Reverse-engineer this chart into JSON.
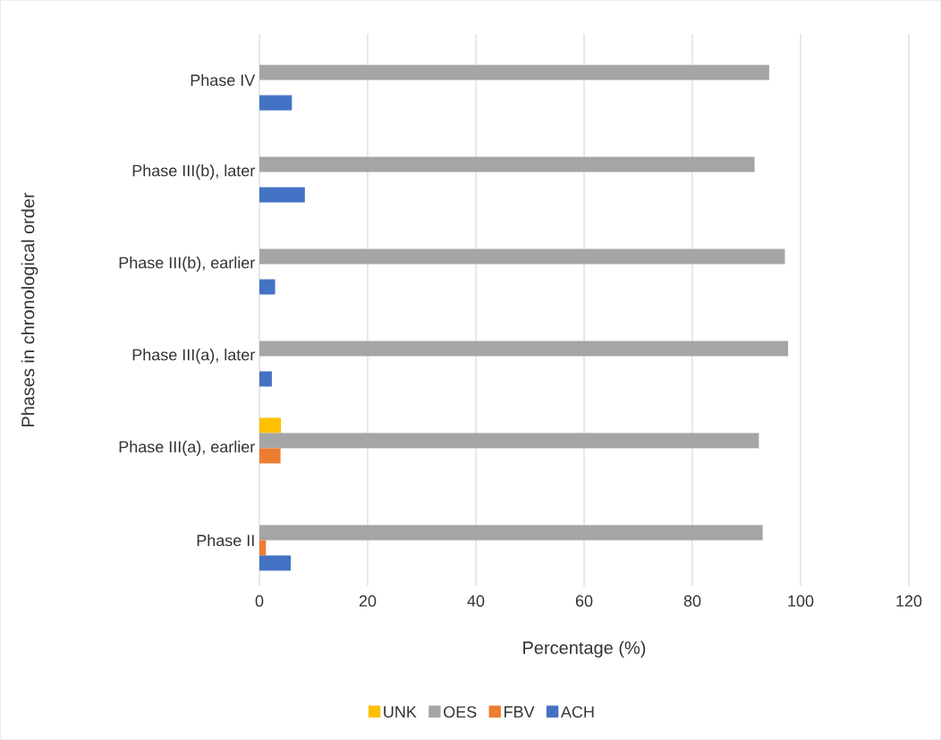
{
  "chart_data": {
    "type": "bar",
    "orientation": "horizontal",
    "xlabel": "Percentage (%)",
    "ylabel": "Phases in chronological order",
    "categories": [
      "Phase IV",
      "Phase III(b), later",
      "Phase III(b), earlier",
      "Phase III(a), later",
      "Phase III(a), earlier",
      "Phase II"
    ],
    "series": [
      {
        "name": "UNK",
        "color": "#ffc000",
        "values": [
          null,
          null,
          null,
          null,
          4.0,
          null
        ]
      },
      {
        "name": "OES",
        "color": "#a5a5a5",
        "values": [
          94.2,
          91.5,
          97.1,
          97.7,
          92.3,
          93.0
        ]
      },
      {
        "name": "FBV",
        "color": "#ed7d31",
        "values": [
          null,
          null,
          null,
          null,
          3.9,
          1.2
        ]
      },
      {
        "name": "ACH",
        "color": "#4472c4",
        "values": [
          6.0,
          8.4,
          2.9,
          2.3,
          null,
          5.8
        ]
      }
    ],
    "xlim": [
      0,
      120
    ],
    "xticks": [
      0,
      20,
      40,
      60,
      80,
      100,
      120
    ],
    "grid": "x",
    "legend": "bottom"
  }
}
